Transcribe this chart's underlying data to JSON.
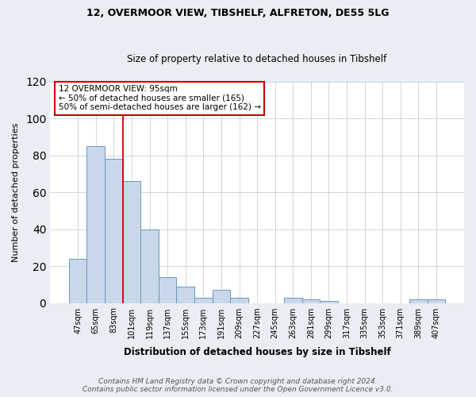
{
  "title_line1": "12, OVERMOOR VIEW, TIBSHELF, ALFRETON, DE55 5LG",
  "title_line2": "Size of property relative to detached houses in Tibshelf",
  "xlabel": "Distribution of detached houses by size in Tibshelf",
  "ylabel": "Number of detached properties",
  "categories": [
    "47sqm",
    "65sqm",
    "83sqm",
    "101sqm",
    "119sqm",
    "137sqm",
    "155sqm",
    "173sqm",
    "191sqm",
    "209sqm",
    "227sqm",
    "245sqm",
    "263sqm",
    "281sqm",
    "299sqm",
    "317sqm",
    "335sqm",
    "353sqm",
    "371sqm",
    "389sqm",
    "407sqm"
  ],
  "values": [
    24,
    85,
    78,
    66,
    40,
    14,
    9,
    3,
    7,
    3,
    0,
    0,
    3,
    2,
    1,
    0,
    0,
    0,
    0,
    2,
    2
  ],
  "bar_color": "#c8d8ea",
  "bar_edge_color": "#6699bb",
  "vline_color": "#cc0000",
  "vline_x_index": 2.5,
  "annotation_title": "12 OVERMOOR VIEW: 95sqm",
  "annotation_line1": "← 50% of detached houses are smaller (165)",
  "annotation_line2": "50% of semi-detached houses are larger (162) →",
  "annotation_box_color": "#ffffff",
  "annotation_box_edge": "#cc0000",
  "ylim": [
    0,
    120
  ],
  "yticks": [
    0,
    20,
    40,
    60,
    80,
    100,
    120
  ],
  "footer_line1": "Contains HM Land Registry data © Crown copyright and database right 2024.",
  "footer_line2": "Contains public sector information licensed under the Open Government Licence v3.0.",
  "bg_color": "#e8eef4",
  "plot_bg_color": "#ffffff",
  "grid_color": "#c8d0d8",
  "title1_fontsize": 9,
  "title2_fontsize": 8.5,
  "xlabel_fontsize": 8.5,
  "ylabel_fontsize": 8,
  "tick_fontsize": 7,
  "annotation_fontsize": 7.5,
  "footer_fontsize": 6.5
}
